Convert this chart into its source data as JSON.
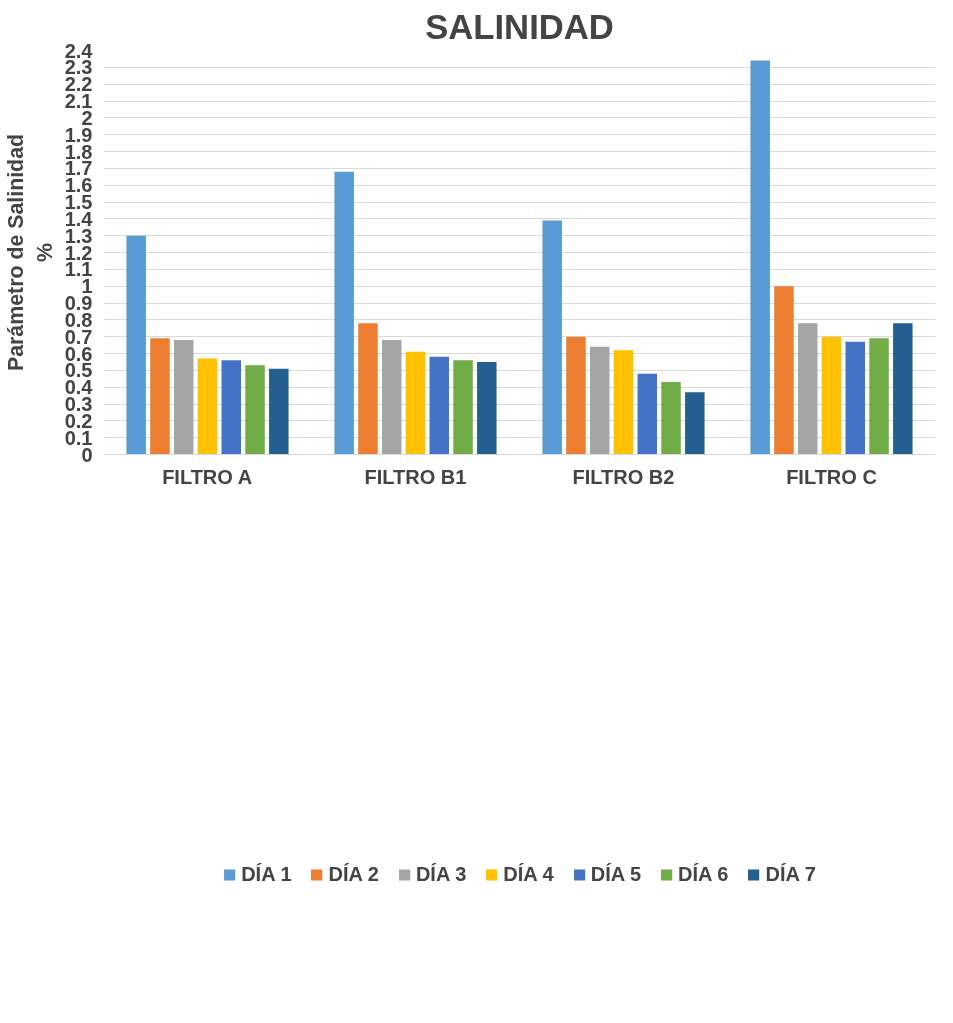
{
  "chart_data": {
    "type": "bar",
    "title": "SALINIDAD",
    "ylabel": "Parámetro de Salinidad\n%",
    "categories": [
      "FILTRO A",
      "FILTRO B1",
      "FILTRO B2",
      "FILTRO C"
    ],
    "ylim": [
      0,
      2.4
    ],
    "yticks": [
      0,
      0.1,
      0.2,
      0.3,
      0.4,
      0.5,
      0.6,
      0.7,
      0.8,
      0.9,
      1,
      1.1,
      1.2,
      1.3,
      1.4,
      1.5,
      1.6,
      1.7,
      1.8,
      1.9,
      2,
      2.1,
      2.2,
      2.3,
      2.4
    ],
    "grid": "y",
    "legend": "bottom",
    "series": [
      {
        "name": "DÍA 1",
        "color": "#5b9bd5",
        "values": [
          1.3,
          1.68,
          1.39,
          2.34
        ]
      },
      {
        "name": "DÍA 2",
        "color": "#ed7d31",
        "values": [
          0.69,
          0.78,
          0.7,
          1.0
        ]
      },
      {
        "name": "DÍA 3",
        "color": "#a5a5a5",
        "values": [
          0.68,
          0.68,
          0.64,
          0.78
        ]
      },
      {
        "name": "DÍA 4",
        "color": "#ffc000",
        "values": [
          0.57,
          0.61,
          0.62,
          0.7
        ]
      },
      {
        "name": "DÍA 5",
        "color": "#4472c4",
        "values": [
          0.56,
          0.58,
          0.48,
          0.67
        ]
      },
      {
        "name": "DÍA 6",
        "color": "#70ad47",
        "values": [
          0.53,
          0.56,
          0.43,
          0.69
        ]
      },
      {
        "name": "DÍA 7",
        "color": "#255e91",
        "values": [
          0.51,
          0.55,
          0.37,
          0.78
        ]
      }
    ]
  }
}
